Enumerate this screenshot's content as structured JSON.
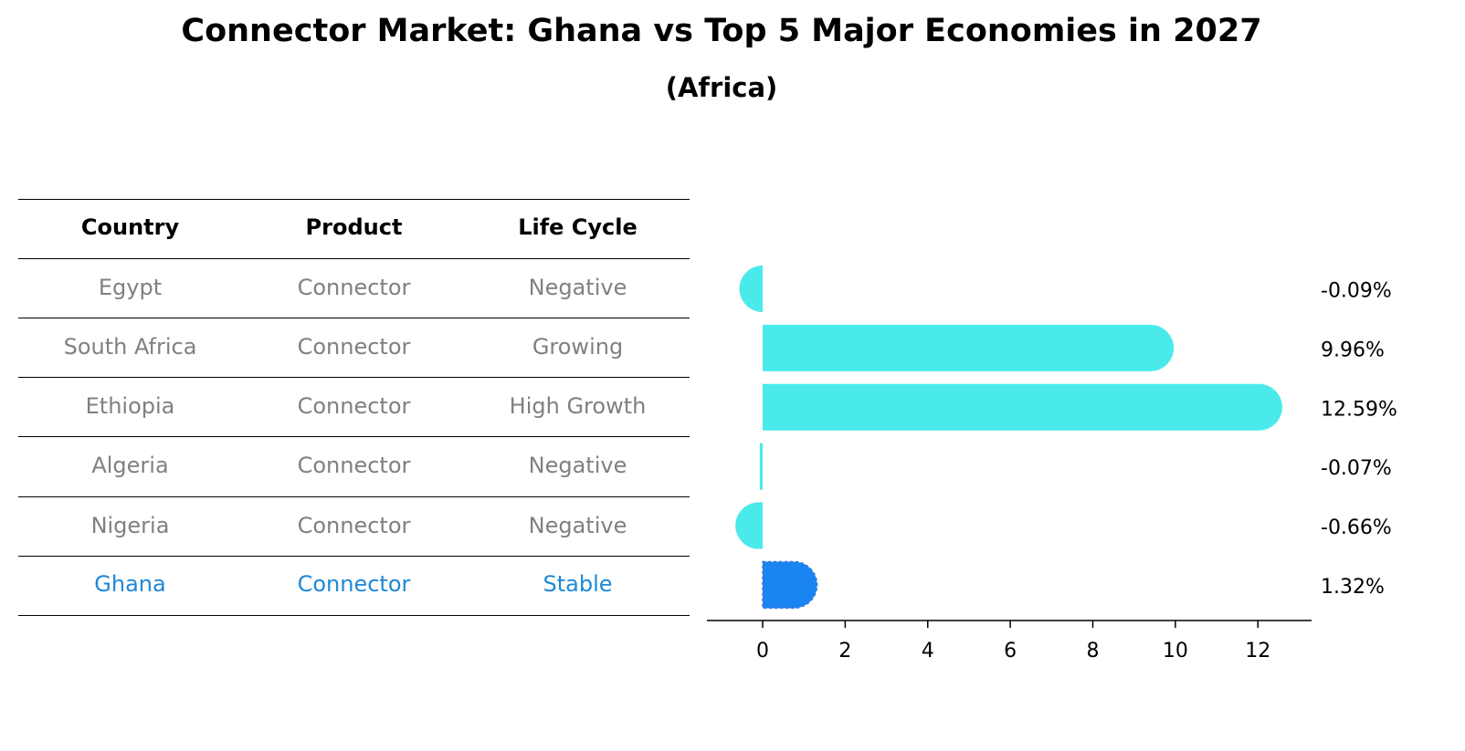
{
  "title": "Connector Market: Ghana vs Top 5 Major Economies in 2027",
  "subtitle": "(Africa)",
  "table": {
    "headers": [
      "Country",
      "Product",
      "Life Cycle"
    ],
    "rows": [
      {
        "country": "Egypt",
        "product": "Connector",
        "life_cycle": "Negative"
      },
      {
        "country": "South Africa",
        "product": "Connector",
        "life_cycle": "Growing"
      },
      {
        "country": "Ethiopia",
        "product": "Connector",
        "life_cycle": "High Growth"
      },
      {
        "country": "Algeria",
        "product": "Connector",
        "life_cycle": "Negative"
      },
      {
        "country": "Nigeria",
        "product": "Connector",
        "life_cycle": "Negative"
      },
      {
        "country": "Ghana",
        "product": "Connector",
        "life_cycle": "Stable"
      }
    ],
    "highlight_row": "Ghana",
    "colors": {
      "header": "#000000",
      "text": "#808080",
      "highlight": "#1e88d6"
    }
  },
  "chart_data": {
    "type": "bar",
    "orientation": "horizontal",
    "categories": [
      "Egypt",
      "South Africa",
      "Ethiopia",
      "Algeria",
      "Nigeria",
      "Ghana"
    ],
    "values": [
      -0.09,
      9.96,
      12.59,
      -0.07,
      -0.66,
      1.32
    ],
    "value_labels": [
      "-0.09%",
      "9.96%",
      "12.59%",
      "-0.07%",
      "-0.66%",
      "1.32%"
    ],
    "xticks": [
      0,
      2,
      4,
      6,
      8,
      10,
      12
    ],
    "xlim": [
      -1.35,
      13.3
    ],
    "highlight": "Ghana",
    "colors": {
      "bar": "#4aeaea",
      "highlight": "#1a84f0"
    },
    "grid": false,
    "legend": "none"
  }
}
